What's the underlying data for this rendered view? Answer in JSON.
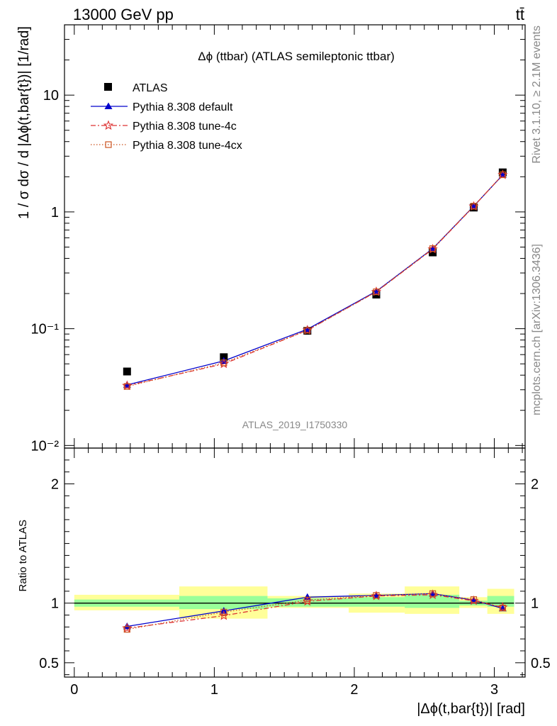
{
  "header": {
    "left": "13000 GeV pp",
    "right": "tt̄"
  },
  "side": {
    "rivet": "Rivet 3.1.10, ≥ 2.1M events",
    "mcplots": "mcplots.cern.ch [arXiv:1306.3436]"
  },
  "chart_data": [
    {
      "type": "line",
      "title": "Δϕ (ttbar) (ATLAS semileptonic ttbar)",
      "ylabel": "1 / σ dσ / d |Δϕ(t,bar{t})| [1/rad]",
      "xlabel": "",
      "yscale": "log",
      "xlim": [
        -0.07,
        3.22
      ],
      "ylim": [
        0.0095,
        40
      ],
      "ytick_values": [
        0.01,
        0.1,
        1,
        10
      ],
      "ytick_labels": [
        "10⁻²",
        "10⁻¹",
        "1",
        "10"
      ],
      "watermark": "ATLAS_2019_I1750330",
      "legend_position": "top-left",
      "x": [
        0.377,
        1.068,
        1.665,
        2.157,
        2.56,
        2.853,
        3.06
      ],
      "series": [
        {
          "name": "ATLAS",
          "color": "#000000",
          "marker": "square",
          "values": [
            0.043,
            0.057,
            0.096,
            0.196,
            0.45,
            1.09,
            2.18
          ]
        },
        {
          "name": "Pythia 8.308 default",
          "color": "#0000cc",
          "marker": "triangle",
          "dash": "solid",
          "values": [
            0.033,
            0.053,
            0.099,
            0.209,
            0.485,
            1.12,
            2.07
          ]
        },
        {
          "name": "Pythia 8.308 tune-4c",
          "color": "#dd3333",
          "marker": "star",
          "dash": "dashdot",
          "values": [
            0.0325,
            0.05,
            0.097,
            0.207,
            0.48,
            1.115,
            2.08
          ]
        },
        {
          "name": "Pythia 8.308 tune-4cx",
          "color": "#cc5522",
          "marker": "open-square",
          "dash": "dotted",
          "values": [
            0.032,
            0.051,
            0.097,
            0.207,
            0.485,
            1.12,
            2.08
          ]
        }
      ]
    },
    {
      "type": "line",
      "title": "",
      "ylabel": "Ratio to ATLAS",
      "xlabel": "|Δϕ(t,bar{t})| [rad]",
      "xlim": [
        -0.07,
        3.22
      ],
      "ylim": [
        0.38,
        2.3
      ],
      "xtick_values": [
        0,
        1,
        2,
        3
      ],
      "xtick_labels": [
        "0",
        "1",
        "2",
        "3"
      ],
      "ytick_values": [
        0.5,
        1,
        2
      ],
      "ytick_labels": [
        "0.5",
        "1",
        "2"
      ],
      "bins": [
        [
          0.0,
          0.75
        ],
        [
          0.75,
          1.38
        ],
        [
          1.38,
          1.96
        ],
        [
          1.96,
          2.36
        ],
        [
          2.36,
          2.75
        ],
        [
          2.75,
          2.95
        ],
        [
          2.95,
          3.1416
        ]
      ],
      "band_inner": [
        [
          0.97,
          1.03
        ],
        [
          0.95,
          1.06
        ],
        [
          0.97,
          1.04
        ],
        [
          0.97,
          1.05
        ],
        [
          0.96,
          1.07
        ],
        [
          0.98,
          1.02
        ],
        [
          0.97,
          1.06
        ]
      ],
      "band_outer": [
        [
          0.94,
          1.07
        ],
        [
          0.87,
          1.14
        ],
        [
          0.96,
          1.06
        ],
        [
          0.92,
          1.08
        ],
        [
          0.91,
          1.14
        ],
        [
          0.96,
          1.05
        ],
        [
          0.91,
          1.12
        ]
      ],
      "x": [
        0.377,
        1.068,
        1.665,
        2.157,
        2.56,
        2.853,
        3.06
      ],
      "series": [
        {
          "name": "Pythia 8.308 default",
          "color": "#0000cc",
          "marker": "triangle",
          "dash": "solid",
          "values": [
            0.805,
            0.935,
            1.05,
            1.065,
            1.08,
            1.025,
            0.955
          ]
        },
        {
          "name": "Pythia 8.308 tune-4c",
          "color": "#dd3333",
          "marker": "star",
          "dash": "dashdot",
          "values": [
            0.79,
            0.895,
            1.015,
            1.06,
            1.07,
            1.02,
            0.965
          ]
        },
        {
          "name": "Pythia 8.308 tune-4cx",
          "color": "#cc5522",
          "marker": "open-square",
          "dash": "dotted",
          "values": [
            0.78,
            0.925,
            1.025,
            1.065,
            1.08,
            1.03,
            0.96
          ]
        }
      ]
    }
  ]
}
